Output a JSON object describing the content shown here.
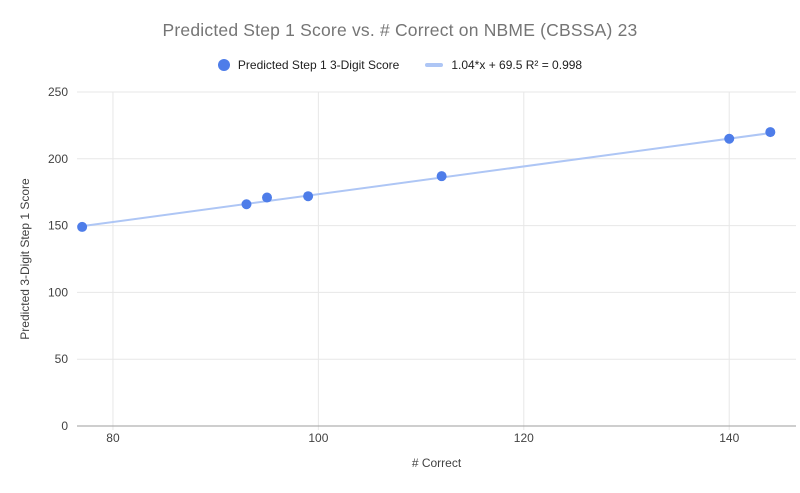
{
  "chart_data": {
    "type": "scatter",
    "title": "Predicted Step 1 Score vs. # Correct on NBME (CBSSA) 23",
    "xlabel": "# Correct",
    "ylabel": "Predicted 3-Digit Step 1 Score",
    "series": [
      {
        "name": "Predicted Step 1 3-Digit Score",
        "color": "#4e7de9",
        "points": [
          [
            77,
            149
          ],
          [
            93,
            166
          ],
          [
            95,
            171
          ],
          [
            99,
            172
          ],
          [
            112,
            187
          ],
          [
            140,
            215
          ],
          [
            144,
            220
          ]
        ]
      }
    ],
    "trendline": {
      "label": "1.04*x + 69.5 R² = 0.998",
      "slope": 1.04,
      "intercept": 69.5,
      "r_squared": 0.998,
      "color": "#aec6f5",
      "x_start": 77,
      "x_end": 144
    },
    "x_ticks": [
      80,
      100,
      120,
      140
    ],
    "y_ticks": [
      0,
      50,
      100,
      150,
      200,
      250
    ],
    "xlim": [
      76.5,
      146.5
    ],
    "ylim": [
      0,
      250
    ],
    "grid": true,
    "legend_position": "top"
  },
  "colors": {
    "background": "#ffffff",
    "title_text": "#757575",
    "axis_text": "#424242",
    "legend_text": "#212121",
    "gridline": "#e7e7e7",
    "baseline": "#9e9e9e"
  }
}
